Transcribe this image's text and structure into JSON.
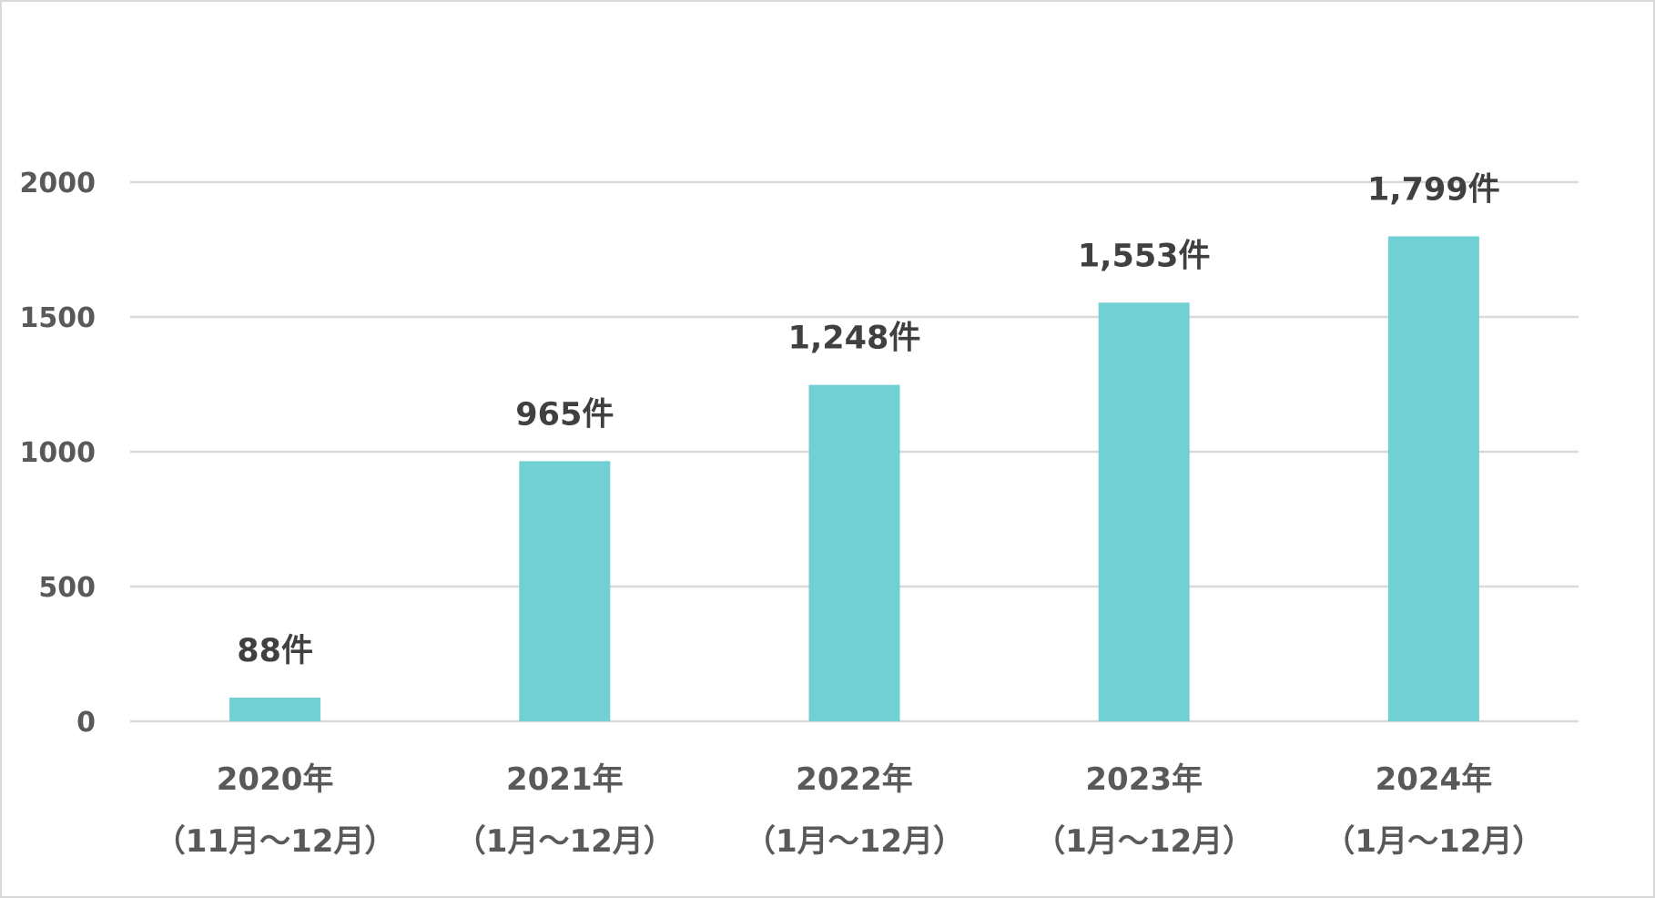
{
  "chart_data": {
    "type": "bar",
    "categories": [
      [
        "2020年",
        "（11月～12月）"
      ],
      [
        "2021年",
        "（1月～12月）"
      ],
      [
        "2022年",
        "（1月～12月）"
      ],
      [
        "2023年",
        "（1月～12月）"
      ],
      [
        "2024年",
        "（1月～12月）"
      ]
    ],
    "values": [
      88,
      965,
      1248,
      1553,
      1799
    ],
    "data_labels": [
      "88件",
      "965件",
      "1,248件",
      "1,553件",
      "1,799件"
    ],
    "yticks": [
      0,
      500,
      1000,
      1500,
      2000
    ],
    "ytick_labels": [
      "0",
      "500",
      "1000",
      "1500",
      "2000"
    ],
    "ylim": [
      0,
      2000
    ],
    "grid": true,
    "legend": "none",
    "bar_color": "#70d0d3",
    "gridline_color": "#d9d9d9",
    "title": "",
    "xlabel": "",
    "ylabel": ""
  }
}
